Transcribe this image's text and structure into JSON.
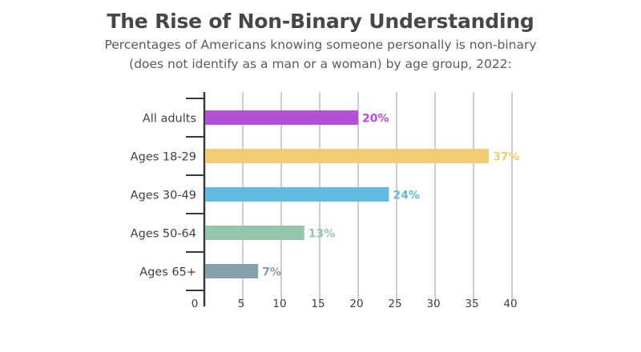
{
  "chart_data": {
    "type": "bar",
    "orientation": "horizontal",
    "title": "The Rise of Non-Binary Understanding",
    "subtitle_lines": [
      "Percentages of Americans knowing someone personally is non-binary",
      "(does not identify as a man or a woman) by age group, 2022:"
    ],
    "categories": [
      "All adults",
      "Ages 18-29",
      "Ages 30-49",
      "Ages 50-64",
      "Ages 65+"
    ],
    "values": [
      20,
      37,
      24,
      13,
      7
    ],
    "value_labels": [
      "20%",
      "37%",
      "24%",
      "13%",
      "7%"
    ],
    "colors": [
      "#b34fd8",
      "#f0cc72",
      "#64b9e4",
      "#93c6ab",
      "#87a0ad"
    ],
    "xlim": [
      0,
      40
    ],
    "xticks": [
      0,
      5,
      10,
      15,
      20,
      25,
      30,
      35,
      40
    ],
    "grid": true,
    "xlabel": "",
    "ylabel": ""
  }
}
